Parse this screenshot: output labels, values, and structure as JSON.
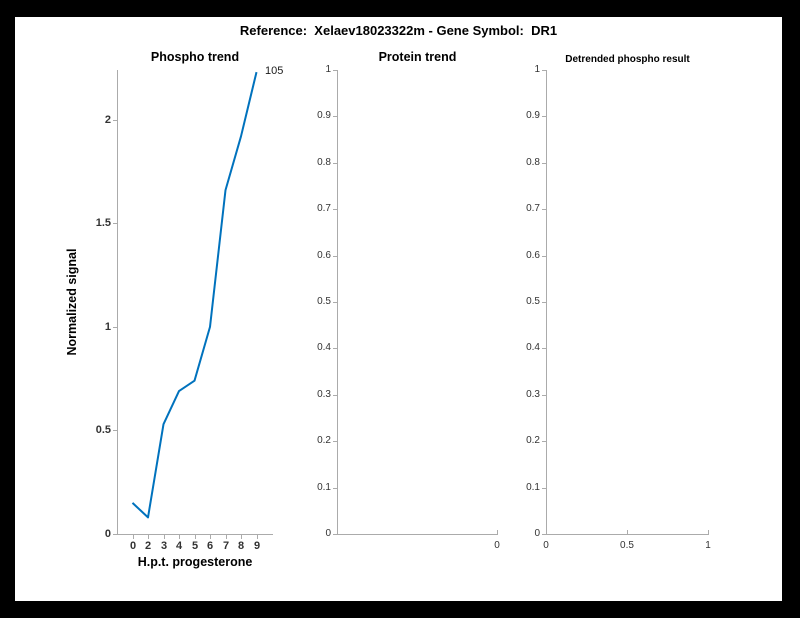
{
  "header": {
    "title": "Reference:  Xelaev18023322m - Gene Symbol:  DR1"
  },
  "colors": {
    "line": "#0072BD",
    "axis": "#ababab",
    "tick_label": "#333333",
    "figure_background": "#ffffff",
    "page_background": "#000000"
  },
  "chart_data": [
    {
      "id": "phospho-trend",
      "type": "line",
      "title": "Phospho trend",
      "xlabel": "H.p.t. progesterone",
      "ylabel": "Normalized signal",
      "categories": [
        "0",
        "2",
        "3",
        "4",
        "5",
        "6",
        "7",
        "8",
        "9"
      ],
      "values": [
        0.15,
        0.08,
        0.53,
        0.69,
        0.74,
        1.0,
        1.66,
        1.92,
        2.23
      ],
      "ylim": [
        0,
        2.24
      ],
      "yticks": [
        0,
        0.5,
        1,
        1.5,
        2
      ],
      "ytick_labels": [
        "0",
        "0.5",
        "1",
        "1.5",
        "2"
      ],
      "annotation": {
        "text": "105",
        "at_point": 8
      },
      "line_color": "#0072BD",
      "legend": "none",
      "grid": false
    },
    {
      "id": "protein-trend",
      "type": "line",
      "title": "Protein trend",
      "xlabel": "",
      "ylabel": "",
      "values": [],
      "ylim": [
        0,
        1
      ],
      "yticks": [
        0,
        0.1,
        0.2,
        0.3,
        0.4,
        0.5,
        0.6,
        0.7,
        0.8,
        0.9,
        1
      ],
      "ytick_labels": [
        "0",
        "0.1",
        "0.2",
        "0.3",
        "0.4",
        "0.5",
        "0.6",
        "0.7",
        "0.8",
        "0.9",
        "1"
      ],
      "xticks": [
        {
          "frac": 1,
          "label": "0"
        }
      ],
      "grid": false
    },
    {
      "id": "detrended-phospho-result",
      "type": "line",
      "title": "Detrended phospho result",
      "xlabel": "",
      "ylabel": "",
      "values": [],
      "ylim": [
        0,
        1
      ],
      "yticks": [
        0,
        0.1,
        0.2,
        0.3,
        0.4,
        0.5,
        0.6,
        0.7,
        0.8,
        0.9,
        1
      ],
      "ytick_labels": [
        "0",
        "0.1",
        "0.2",
        "0.3",
        "0.4",
        "0.5",
        "0.6",
        "0.7",
        "0.8",
        "0.9",
        "1"
      ],
      "xticks": [
        {
          "frac": 0,
          "label": "0"
        },
        {
          "frac": 0.5,
          "label": "0.5"
        },
        {
          "frac": 1,
          "label": "1"
        }
      ],
      "grid": false
    }
  ]
}
